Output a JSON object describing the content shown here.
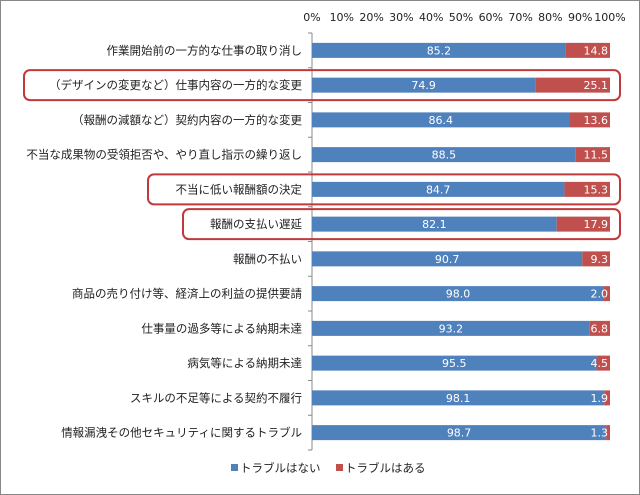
{
  "chart_data": {
    "type": "bar",
    "orientation": "horizontal-stacked-100",
    "title": "",
    "xlabel": "",
    "ylabel": "",
    "xlim": [
      0,
      100
    ],
    "x_ticks": [
      "0%",
      "10%",
      "20%",
      "30%",
      "40%",
      "50%",
      "60%",
      "70%",
      "80%",
      "90%",
      "100%"
    ],
    "x_tick_values": [
      0,
      10,
      20,
      30,
      40,
      50,
      60,
      70,
      80,
      90,
      100
    ],
    "categories": [
      "作業開始前の一方的な仕事の取り消し",
      "（デザインの変更など）仕事内容の一方的な変更",
      "（報酬の減額など）契約内容の一方的な変更",
      "不当な成果物の受領拒否や、やり直し指示の繰り返し",
      "不当に低い報酬額の決定",
      "報酬の支払い遅延",
      "報酬の不払い",
      "商品の売り付け等、経済上の利益の提供要請",
      "仕事量の過多等による納期未達",
      "病気等による納期未達",
      "スキルの不足等による契約不履行",
      "情報漏洩その他セキュリティに関するトラブル"
    ],
    "series": [
      {
        "name": "トラブルはない",
        "color": "#4F81BD",
        "values": [
          85.2,
          74.9,
          86.4,
          88.5,
          84.7,
          82.1,
          90.7,
          98.0,
          93.2,
          95.5,
          98.1,
          98.7
        ]
      },
      {
        "name": "トラブルはある",
        "color": "#C0504D",
        "values": [
          14.8,
          25.1,
          13.6,
          11.5,
          15.3,
          17.9,
          9.3,
          2.0,
          6.8,
          4.5,
          1.9,
          1.3
        ]
      }
    ],
    "highlighted_categories": [
      1,
      4,
      5
    ],
    "highlight_color": "#C0393B",
    "legend_position": "bottom",
    "grid": false
  }
}
